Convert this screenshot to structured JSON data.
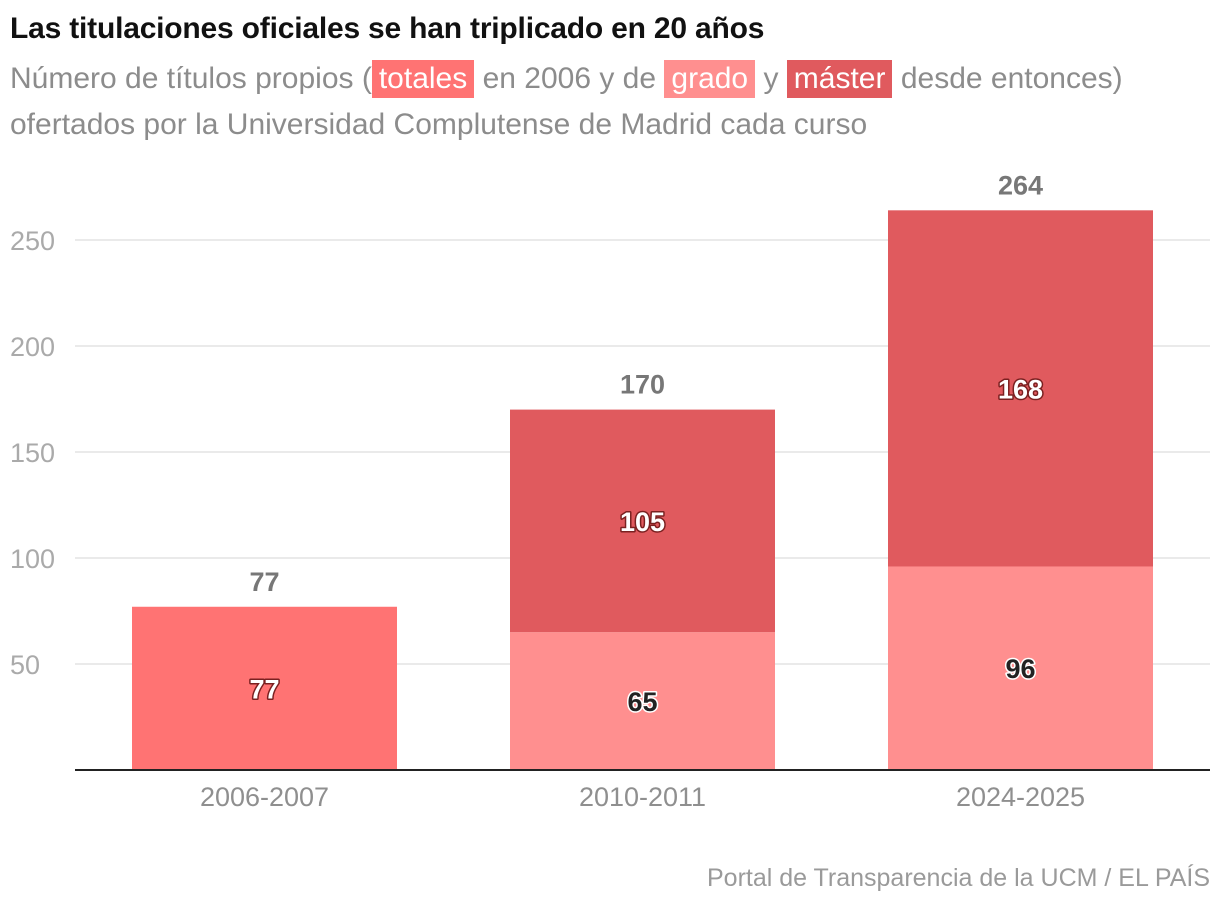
{
  "title": "Las titulaciones oficiales se han triplicado en 20 años",
  "subtitle": {
    "part1": "Número de títulos propios (",
    "chip_totales": "totales",
    "part2": " en 2006 y de ",
    "chip_grado": "grado",
    "part3": " y ",
    "chip_master": "máster",
    "part4": " desde entonces) ofertados por la Universidad Complutense de Madrid cada curso"
  },
  "source": "Portal de Transparencia de la UCM / EL PAÍS",
  "colors": {
    "totales": "#ff7373",
    "grado": "#ff8f8f",
    "master": "#e05a5e"
  },
  "chart_data": {
    "type": "bar",
    "stacked": true,
    "categories": [
      "2006-2007",
      "2010-2011",
      "2024-2025"
    ],
    "series": [
      {
        "name": "totales",
        "values": [
          77,
          null,
          null
        ]
      },
      {
        "name": "grado",
        "values": [
          null,
          65,
          96
        ]
      },
      {
        "name": "máster",
        "values": [
          null,
          105,
          168
        ]
      }
    ],
    "totals": [
      77,
      170,
      264
    ],
    "ylim": [
      0,
      264
    ],
    "yticks": [
      50,
      100,
      150,
      200,
      250
    ],
    "grid": true
  }
}
